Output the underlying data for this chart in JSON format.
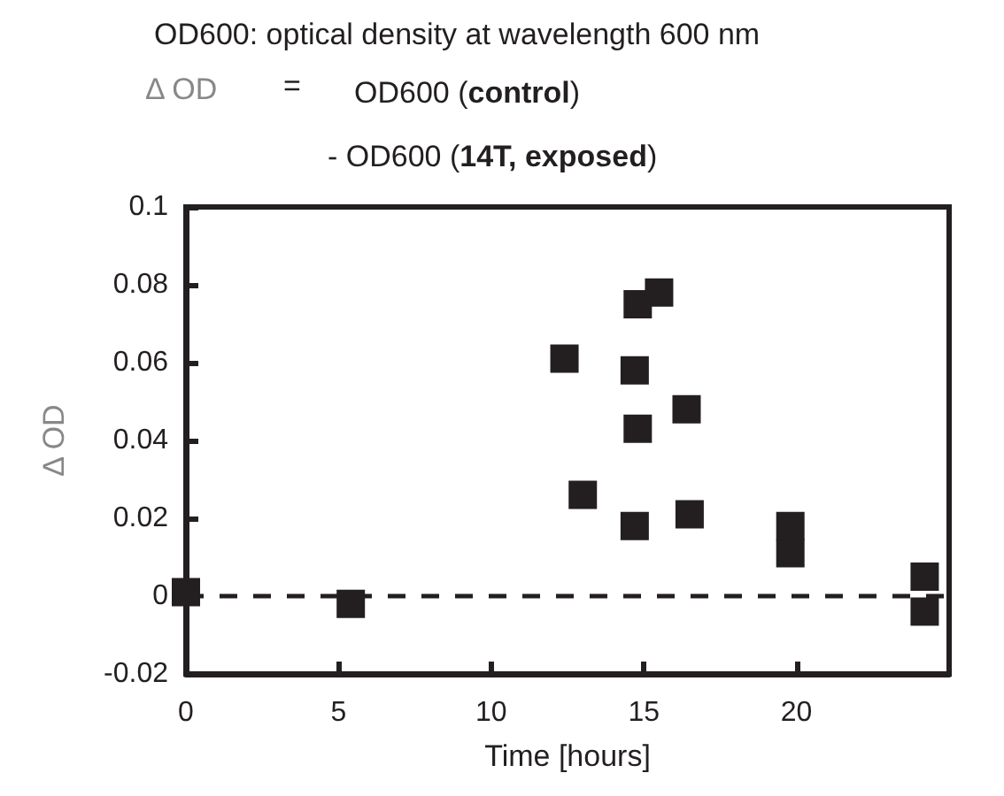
{
  "chart_data": {
    "type": "scatter",
    "title": "OD600: optical density at wavelength 600 nm",
    "annotations": [
      "Δ OD",
      "=",
      "OD600 (control)",
      "- OD600 (14T, exposed)"
    ],
    "xlabel": "Time [hours]",
    "ylabel": "Δ OD",
    "x": [
      0,
      5.4,
      12.4,
      13.0,
      14.8,
      15.5,
      14.7,
      16.4,
      14.8,
      14.7,
      16.5,
      19.8,
      19.8,
      24.2,
      24.2
    ],
    "series": [
      {
        "color": "#231f20",
        "values": [
          0.001,
          -0.002,
          0.061,
          0.026,
          0.075,
          0.078,
          0.058,
          0.048,
          0.043,
          0.018,
          0.021,
          0.018,
          0.011,
          0.005,
          -0.004
        ]
      }
    ],
    "xlim": [
      0,
      25
    ],
    "xticks": [
      0,
      5,
      10,
      15,
      20
    ],
    "ylim": [
      -0.02,
      0.1
    ],
    "yticks": [
      -0.02,
      0,
      0.02,
      0.04,
      0.06,
      0.08,
      0.1
    ],
    "ref_lines": [
      {
        "axis": "y",
        "value": 0,
        "line_style": "dashed",
        "color": "#231f20"
      }
    ],
    "marker": "square",
    "grid": false
  }
}
